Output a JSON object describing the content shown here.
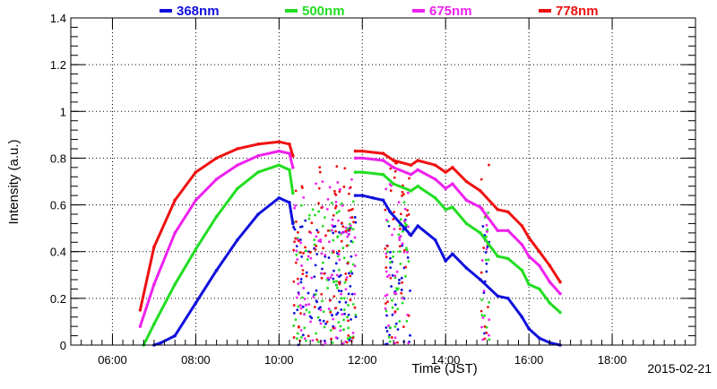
{
  "chart_data": {
    "type": "scatter",
    "xlabel": "Time (JST)",
    "ylabel": "Intensity (a.u.)",
    "date": "2015-02-21",
    "xlim": [
      "05:00",
      "20:00"
    ],
    "ylim": [
      0,
      1.4
    ],
    "x_ticks": [
      "06:00",
      "08:00",
      "10:00",
      "12:00",
      "14:00",
      "16:00",
      "18:00"
    ],
    "y_ticks": [
      "0",
      "0.2",
      "0.4",
      "0.6",
      "0.8",
      "1",
      "1.2",
      "1.4"
    ],
    "grid": true,
    "legend_position": "top",
    "series": [
      {
        "name": "368nm",
        "color": "#1010dd",
        "points": [
          [
            "07:00",
            0.0
          ],
          [
            "07:10",
            0.01
          ],
          [
            "07:30",
            0.04
          ],
          [
            "08:00",
            0.18
          ],
          [
            "08:30",
            0.32
          ],
          [
            "09:00",
            0.45
          ],
          [
            "09:30",
            0.56
          ],
          [
            "10:00",
            0.63
          ],
          [
            "10:15",
            0.61
          ],
          [
            "10:20",
            0.52
          ],
          [
            "11:50",
            0.64
          ],
          [
            "12:00",
            0.64
          ],
          [
            "12:15",
            0.63
          ],
          [
            "12:30",
            0.62
          ],
          [
            "12:40",
            0.57
          ],
          [
            "13:10",
            0.47
          ],
          [
            "13:20",
            0.51
          ],
          [
            "13:45",
            0.45
          ],
          [
            "14:00",
            0.36
          ],
          [
            "14:10",
            0.39
          ],
          [
            "14:30",
            0.33
          ],
          [
            "14:50",
            0.28
          ],
          [
            "15:15",
            0.21
          ],
          [
            "15:30",
            0.2
          ],
          [
            "15:50",
            0.12
          ],
          [
            "16:00",
            0.07
          ],
          [
            "16:15",
            0.03
          ],
          [
            "16:30",
            0.01
          ],
          [
            "16:45",
            0.0
          ]
        ]
      },
      {
        "name": "500nm",
        "color": "#22dd22",
        "points": [
          [
            "06:45",
            0.0
          ],
          [
            "07:00",
            0.09
          ],
          [
            "07:30",
            0.26
          ],
          [
            "08:00",
            0.41
          ],
          [
            "08:30",
            0.55
          ],
          [
            "09:00",
            0.67
          ],
          [
            "09:30",
            0.74
          ],
          [
            "10:00",
            0.77
          ],
          [
            "10:15",
            0.75
          ],
          [
            "10:20",
            0.65
          ],
          [
            "11:50",
            0.74
          ],
          [
            "12:00",
            0.74
          ],
          [
            "12:30",
            0.73
          ],
          [
            "12:45",
            0.69
          ],
          [
            "13:10",
            0.66
          ],
          [
            "13:20",
            0.68
          ],
          [
            "13:45",
            0.63
          ],
          [
            "14:00",
            0.58
          ],
          [
            "14:10",
            0.59
          ],
          [
            "14:30",
            0.52
          ],
          [
            "14:50",
            0.48
          ],
          [
            "15:15",
            0.38
          ],
          [
            "15:30",
            0.37
          ],
          [
            "15:50",
            0.32
          ],
          [
            "16:00",
            0.26
          ],
          [
            "16:15",
            0.24
          ],
          [
            "16:30",
            0.18
          ],
          [
            "16:45",
            0.14
          ]
        ]
      },
      {
        "name": "675nm",
        "color": "#ee22ee",
        "points": [
          [
            "06:40",
            0.08
          ],
          [
            "07:00",
            0.26
          ],
          [
            "07:30",
            0.48
          ],
          [
            "08:00",
            0.62
          ],
          [
            "08:30",
            0.71
          ],
          [
            "09:00",
            0.77
          ],
          [
            "09:30",
            0.81
          ],
          [
            "10:00",
            0.83
          ],
          [
            "10:15",
            0.82
          ],
          [
            "10:20",
            0.76
          ],
          [
            "11:50",
            0.8
          ],
          [
            "12:00",
            0.8
          ],
          [
            "12:30",
            0.79
          ],
          [
            "12:45",
            0.76
          ],
          [
            "13:10",
            0.73
          ],
          [
            "13:20",
            0.75
          ],
          [
            "13:45",
            0.71
          ],
          [
            "14:00",
            0.67
          ],
          [
            "14:10",
            0.69
          ],
          [
            "14:30",
            0.62
          ],
          [
            "14:50",
            0.59
          ],
          [
            "15:15",
            0.49
          ],
          [
            "15:30",
            0.49
          ],
          [
            "15:50",
            0.43
          ],
          [
            "16:00",
            0.38
          ],
          [
            "16:15",
            0.34
          ],
          [
            "16:30",
            0.27
          ],
          [
            "16:45",
            0.22
          ]
        ]
      },
      {
        "name": "778nm",
        "color": "#ee1111",
        "points": [
          [
            "06:40",
            0.15
          ],
          [
            "07:00",
            0.42
          ],
          [
            "07:30",
            0.62
          ],
          [
            "08:00",
            0.74
          ],
          [
            "08:30",
            0.8
          ],
          [
            "09:00",
            0.84
          ],
          [
            "09:30",
            0.86
          ],
          [
            "10:00",
            0.87
          ],
          [
            "10:15",
            0.86
          ],
          [
            "10:20",
            0.81
          ],
          [
            "11:50",
            0.83
          ],
          [
            "12:00",
            0.83
          ],
          [
            "12:30",
            0.82
          ],
          [
            "12:45",
            0.79
          ],
          [
            "13:10",
            0.77
          ],
          [
            "13:20",
            0.79
          ],
          [
            "13:45",
            0.77
          ],
          [
            "14:00",
            0.74
          ],
          [
            "14:10",
            0.76
          ],
          [
            "14:30",
            0.7
          ],
          [
            "14:50",
            0.66
          ],
          [
            "15:15",
            0.58
          ],
          [
            "15:30",
            0.57
          ],
          [
            "15:50",
            0.51
          ],
          [
            "16:00",
            0.46
          ],
          [
            "16:15",
            0.4
          ],
          [
            "16:30",
            0.34
          ],
          [
            "16:45",
            0.27
          ]
        ]
      }
    ]
  }
}
